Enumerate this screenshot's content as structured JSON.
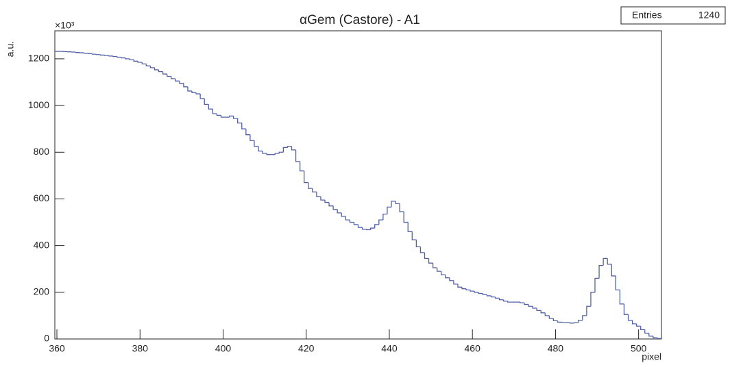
{
  "chart_data": {
    "type": "histogram",
    "title": "αGem (Castore) - A1",
    "x_label": "pixel",
    "y_label": "a.u.",
    "y_exponent_label": "×10³",
    "stats": {
      "label": "Entries",
      "value": 1240
    },
    "color": "#5060a8",
    "xlim": [
      359.5,
      505.5
    ],
    "ylim": [
      0,
      1320
    ],
    "xticks": [
      360,
      380,
      400,
      420,
      440,
      460,
      480,
      500
    ],
    "yticks": [
      0,
      200,
      400,
      600,
      800,
      1000,
      1200
    ],
    "bins": [
      359.5,
      360.5,
      361.5,
      362.5,
      363.5,
      364.5,
      365.5,
      366.5,
      367.5,
      368.5,
      369.5,
      370.5,
      371.5,
      372.5,
      373.5,
      374.5,
      375.5,
      376.5,
      377.5,
      378.5,
      379.5,
      380.5,
      381.5,
      382.5,
      383.5,
      384.5,
      385.5,
      386.5,
      387.5,
      388.5,
      389.5,
      390.5,
      391.5,
      392.5,
      393.5,
      394.5,
      395.5,
      396.5,
      397.5,
      398.5,
      399.5,
      400.5,
      401.5,
      402.5,
      403.5,
      404.5,
      405.5,
      406.5,
      407.5,
      408.5,
      409.5,
      410.5,
      411.5,
      412.5,
      413.5,
      414.5,
      415.5,
      416.5,
      417.5,
      418.5,
      419.5,
      420.5,
      421.5,
      422.5,
      423.5,
      424.5,
      425.5,
      426.5,
      427.5,
      428.5,
      429.5,
      430.5,
      431.5,
      432.5,
      433.5,
      434.5,
      435.5,
      436.5,
      437.5,
      438.5,
      439.5,
      440.5,
      441.5,
      442.5,
      443.5,
      444.5,
      445.5,
      446.5,
      447.5,
      448.5,
      449.5,
      450.5,
      451.5,
      452.5,
      453.5,
      454.5,
      455.5,
      456.5,
      457.5,
      458.5,
      459.5,
      460.5,
      461.5,
      462.5,
      463.5,
      464.5,
      465.5,
      466.5,
      467.5,
      468.5,
      469.5,
      470.5,
      471.5,
      472.5,
      473.5,
      474.5,
      475.5,
      476.5,
      477.5,
      478.5,
      479.5,
      480.5,
      481.5,
      482.5,
      483.5,
      484.5,
      485.5,
      486.5,
      487.5,
      488.5,
      489.5,
      490.5,
      491.5,
      492.5,
      493.5,
      494.5,
      495.5,
      496.5,
      497.5,
      498.5,
      499.5,
      500.5,
      501.5,
      502.5,
      503.5,
      504.5,
      505.5
    ],
    "values": [
      1232,
      1232,
      1231,
      1230,
      1229,
      1227,
      1226,
      1224,
      1222,
      1220,
      1218,
      1216,
      1214,
      1212,
      1210,
      1207,
      1204,
      1200,
      1196,
      1190,
      1185,
      1178,
      1170,
      1162,
      1153,
      1145,
      1135,
      1125,
      1115,
      1105,
      1095,
      1080,
      1062,
      1055,
      1050,
      1030,
      1005,
      985,
      965,
      958,
      950,
      950,
      955,
      945,
      925,
      900,
      875,
      850,
      825,
      805,
      795,
      790,
      790,
      795,
      800,
      820,
      825,
      810,
      760,
      720,
      670,
      645,
      630,
      610,
      595,
      585,
      570,
      555,
      540,
      525,
      510,
      500,
      490,
      478,
      470,
      468,
      475,
      490,
      510,
      535,
      565,
      590,
      580,
      545,
      500,
      460,
      425,
      395,
      370,
      345,
      325,
      305,
      290,
      275,
      262,
      250,
      235,
      222,
      215,
      210,
      205,
      200,
      195,
      190,
      185,
      180,
      175,
      168,
      162,
      158,
      158,
      158,
      155,
      148,
      140,
      132,
      122,
      112,
      100,
      88,
      78,
      72,
      70,
      70,
      68,
      70,
      80,
      100,
      140,
      200,
      260,
      315,
      345,
      320,
      270,
      210,
      150,
      105,
      80,
      65,
      55,
      40,
      25,
      12,
      5,
      2
    ]
  }
}
